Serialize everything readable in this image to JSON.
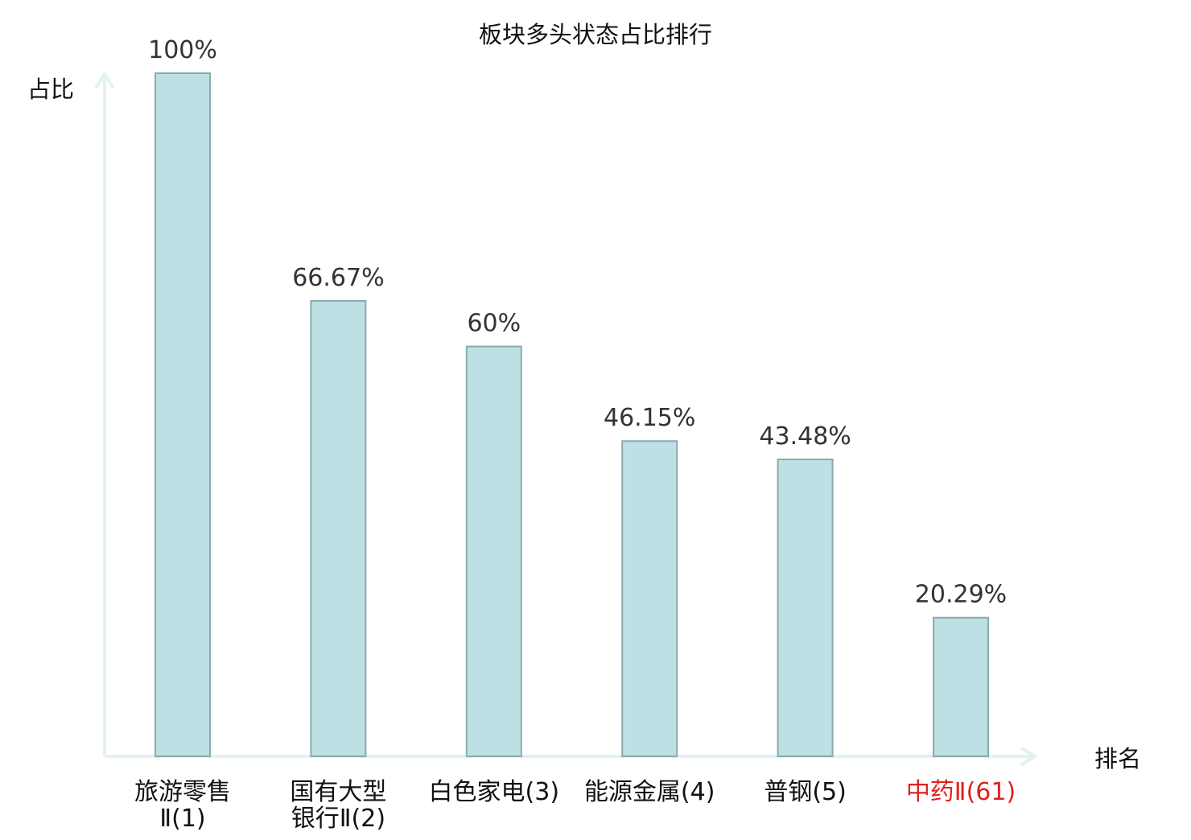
{
  "chart_data": {
    "type": "bar",
    "title": "板块多头状态占比排行",
    "ylabel": "占比",
    "xlabel": "排名",
    "ylim": [
      0,
      100
    ],
    "grid": false,
    "categories": [
      {
        "lines": [
          "旅游零售",
          "Ⅱ(1)"
        ],
        "highlight": false
      },
      {
        "lines": [
          "国有大型",
          "银行Ⅱ(2)"
        ],
        "highlight": false
      },
      {
        "lines": [
          "白色家电(3)"
        ],
        "highlight": false
      },
      {
        "lines": [
          "能源金属(4)"
        ],
        "highlight": false
      },
      {
        "lines": [
          "普钢(5)"
        ],
        "highlight": false
      },
      {
        "lines": [
          "中药Ⅱ(61)"
        ],
        "highlight": true
      }
    ],
    "values": [
      100,
      66.67,
      60,
      46.15,
      43.48,
      20.29
    ],
    "value_labels": [
      "100%",
      "66.67%",
      "60%",
      "46.15%",
      "43.48%",
      "20.29%"
    ],
    "colors": {
      "bar_fill": "#bce0e3",
      "bar_stroke": "#8aabae",
      "axis": "#e1f3f1",
      "label_text": "#333333",
      "category_text": "#111111",
      "highlight_text": "#e02020",
      "title_text": "#111111"
    }
  }
}
